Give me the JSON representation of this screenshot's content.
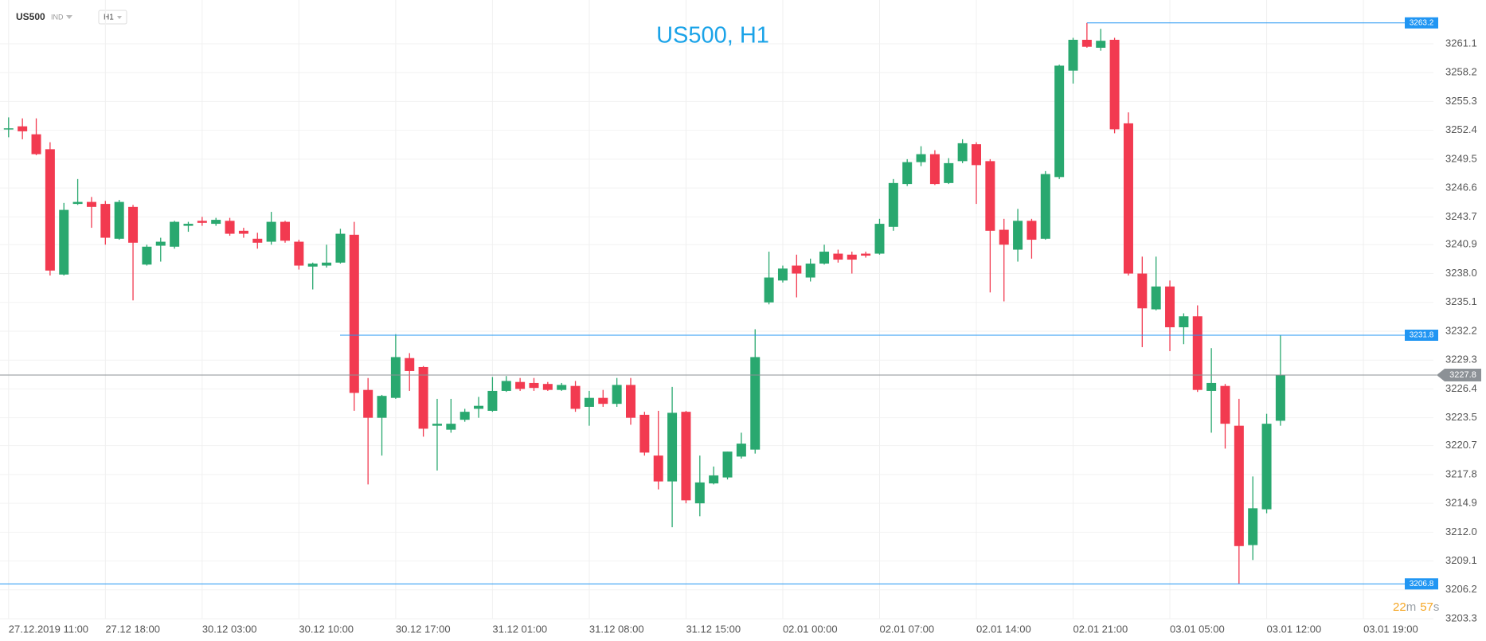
{
  "toolbar": {
    "symbol": "US500",
    "market": "IND",
    "timeframe": "H1"
  },
  "chart_data": {
    "type": "candlestick",
    "title": "US500, H1",
    "up_color": "#29a86f",
    "down_color": "#f23a50",
    "grid": true,
    "categories": [
      "27.12.2019 11:00",
      null,
      null,
      null,
      null,
      null,
      null,
      "27.12 18:00",
      null,
      null,
      null,
      null,
      null,
      null,
      "30.12 03:00",
      null,
      null,
      null,
      null,
      null,
      null,
      "30.12 10:00",
      null,
      null,
      null,
      null,
      null,
      null,
      "30.12 17:00",
      null,
      null,
      null,
      null,
      null,
      null,
      "31.12 01:00",
      null,
      null,
      null,
      null,
      null,
      null,
      "31.12 08:00",
      null,
      null,
      null,
      null,
      null,
      null,
      "31.12 15:00",
      null,
      null,
      null,
      null,
      null,
      null,
      "02.01 00:00",
      null,
      null,
      null,
      null,
      null,
      null,
      "02.01 07:00",
      null,
      null,
      null,
      null,
      null,
      null,
      "02.01 14:00",
      null,
      null,
      null,
      null,
      null,
      null,
      "02.01 21:00",
      null,
      null,
      null,
      null,
      null,
      null,
      "03.01 05:00",
      null,
      null,
      null,
      null,
      null,
      null,
      "03.01 12:00",
      null,
      null,
      null,
      null,
      null,
      null,
      "03.01 19:00"
    ],
    "open": [
      3252.5,
      3252.8,
      3252.0,
      3250.5,
      3237.9,
      3245.0,
      3245.2,
      3245.0,
      3241.5,
      3244.7,
      3238.9,
      3240.8,
      3240.7,
      3242.8,
      3243.3,
      3243.0,
      3243.3,
      3242.3,
      3241.5,
      3241.2,
      3243.2,
      3241.2,
      3238.7,
      3238.8,
      3239.1,
      3241.9,
      3226.3,
      3223.5,
      3225.5,
      3229.5,
      3228.6,
      3222.7,
      3222.3,
      3223.3,
      3224.4,
      3224.2,
      3226.2,
      3227.1,
      3227.0,
      3226.9,
      3226.3,
      3226.7,
      3224.6,
      3225.5,
      3224.9,
      3226.8,
      3223.8,
      3219.7,
      3217.1,
      3224.1,
      3214.9,
      3216.9,
      3217.5,
      3219.6,
      3220.3,
      3235.1,
      3237.3,
      3238.8,
      3237.6,
      3239.0,
      3240.0,
      3239.9,
      3240.0,
      3240.0,
      3242.7,
      3247.0,
      3249.2,
      3250.0,
      3247.1,
      3249.3,
      3251.0,
      3249.3,
      3242.4,
      3240.4,
      3243.3,
      3241.5,
      3247.7,
      3258.4,
      3261.5,
      3260.7,
      3261.5,
      3253.1,
      3238.0,
      3234.4,
      3236.7,
      3232.6,
      3233.7,
      3226.2,
      3226.7,
      3222.7,
      3210.7,
      3214.3,
      3223.2,
      null,
      null,
      null,
      null,
      null,
      null
    ],
    "high": [
      3253.7,
      3253.6,
      3253.6,
      3251.2,
      3245.1,
      3247.5,
      3245.7,
      3245.3,
      3245.4,
      3244.9,
      3240.9,
      3241.6,
      3243.3,
      3243.2,
      3243.7,
      3243.6,
      3243.6,
      3242.6,
      3242.1,
      3244.2,
      3243.3,
      3241.4,
      3239.1,
      3240.9,
      3242.5,
      3243.2,
      3227.5,
      3225.8,
      3231.9,
      3230.0,
      3228.7,
      3225.4,
      3225.4,
      3224.4,
      3225.6,
      3227.6,
      3227.7,
      3227.5,
      3227.5,
      3227.1,
      3227.0,
      3227.2,
      3226.2,
      3226.3,
      3227.5,
      3227.5,
      3224.1,
      3224.2,
      3226.6,
      3224.2,
      3219.7,
      3218.6,
      3220.1,
      3222.0,
      3232.4,
      3240.2,
      3238.8,
      3239.9,
      3239.5,
      3240.9,
      3240.4,
      3240.2,
      3240.2,
      3243.5,
      3247.5,
      3249.5,
      3250.8,
      3250.4,
      3249.6,
      3251.5,
      3251.2,
      3249.5,
      3243.5,
      3244.5,
      3243.5,
      3248.3,
      3259.0,
      3261.7,
      3263.2,
      3262.6,
      3261.7,
      3254.2,
      3239.7,
      3239.7,
      3237.3,
      3234.0,
      3234.8,
      3230.5,
      3226.9,
      3225.4,
      3217.6,
      3223.9,
      3231.8,
      null,
      null,
      null,
      null,
      null,
      null
    ],
    "low": [
      3251.7,
      3251.5,
      3249.9,
      3237.8,
      3237.8,
      3244.9,
      3242.6,
      3240.9,
      3241.4,
      3235.3,
      3238.8,
      3239.2,
      3240.5,
      3242.2,
      3242.8,
      3242.8,
      3241.8,
      3241.6,
      3240.5,
      3240.9,
      3241.1,
      3238.4,
      3236.4,
      3238.6,
      3239.0,
      3224.2,
      3216.8,
      3219.7,
      3225.4,
      3226.2,
      3221.6,
      3218.2,
      3222.0,
      3223.1,
      3223.5,
      3224.1,
      3226.1,
      3226.2,
      3226.2,
      3226.2,
      3226.2,
      3224.1,
      3222.7,
      3224.6,
      3224.6,
      3222.8,
      3219.7,
      3216.3,
      3212.5,
      3214.9,
      3213.6,
      3216.8,
      3217.3,
      3219.4,
      3219.9,
      3234.9,
      3237.1,
      3235.6,
      3237.2,
      3238.9,
      3239.1,
      3238.0,
      3239.6,
      3239.9,
      3242.3,
      3246.8,
      3248.8,
      3246.9,
      3247.0,
      3249.1,
      3245.0,
      3236.1,
      3235.2,
      3239.2,
      3239.5,
      3241.4,
      3247.5,
      3257.1,
      3260.7,
      3260.4,
      3252.1,
      3237.8,
      3230.6,
      3234.3,
      3230.2,
      3230.9,
      3226.1,
      3222.0,
      3220.4,
      3206.8,
      3209.2,
      3213.9,
      3222.7,
      null,
      null,
      null,
      null,
      null,
      null
    ],
    "close": [
      3252.6,
      3252.3,
      3250.0,
      3238.3,
      3244.4,
      3245.2,
      3244.7,
      3241.6,
      3245.2,
      3241.1,
      3240.7,
      3241.2,
      3243.2,
      3243.0,
      3243.1,
      3243.4,
      3242.0,
      3242.0,
      3241.1,
      3243.2,
      3241.3,
      3238.8,
      3239.0,
      3239.1,
      3242.0,
      3226.0,
      3223.5,
      3225.7,
      3229.6,
      3228.2,
      3222.4,
      3222.9,
      3222.9,
      3224.1,
      3224.7,
      3226.2,
      3227.2,
      3226.4,
      3226.5,
      3226.3,
      3226.8,
      3224.4,
      3225.5,
      3224.9,
      3226.8,
      3223.5,
      3220.0,
      3217.1,
      3224.0,
      3215.2,
      3217.0,
      3217.7,
      3220.1,
      3220.9,
      3229.6,
      3237.6,
      3238.5,
      3238.0,
      3239.0,
      3240.2,
      3239.4,
      3239.4,
      3239.8,
      3243.0,
      3247.1,
      3249.2,
      3250.0,
      3247.0,
      3249.1,
      3251.1,
      3248.9,
      3242.3,
      3240.9,
      3243.3,
      3241.4,
      3248.0,
      3258.9,
      3261.5,
      3260.8,
      3261.4,
      3252.5,
      3238.0,
      3234.5,
      3236.7,
      3232.6,
      3233.7,
      3226.3,
      3227.0,
      3222.9,
      3210.6,
      3214.4,
      3222.9,
      3227.8,
      null,
      null,
      null,
      null,
      null,
      null
    ],
    "ylim": [
      3203.3,
      3265.5
    ],
    "yticks": [
      3203.3,
      3206.2,
      3209.1,
      {
        "value": 3212,
        "label": "3212.0"
      },
      3214.9,
      3217.8,
      3220.7,
      3223.5,
      3226.4,
      3229.3,
      3232.2,
      3235.1,
      {
        "value": 3238,
        "label": "3238.0"
      },
      3240.9,
      3243.7,
      3246.6,
      3249.5,
      3252.4,
      3255.3,
      3258.2,
      3261.1
    ],
    "levels": [
      3263.2,
      3231.8,
      3206.8
    ],
    "level_color": "#2196f3",
    "last_price": 3227.8,
    "last_price_color": "#8c9196",
    "countdown": [
      "22",
      "m",
      "57",
      "s"
    ],
    "countdown_colors": [
      "#f5a623",
      "#9aa0a6"
    ]
  }
}
